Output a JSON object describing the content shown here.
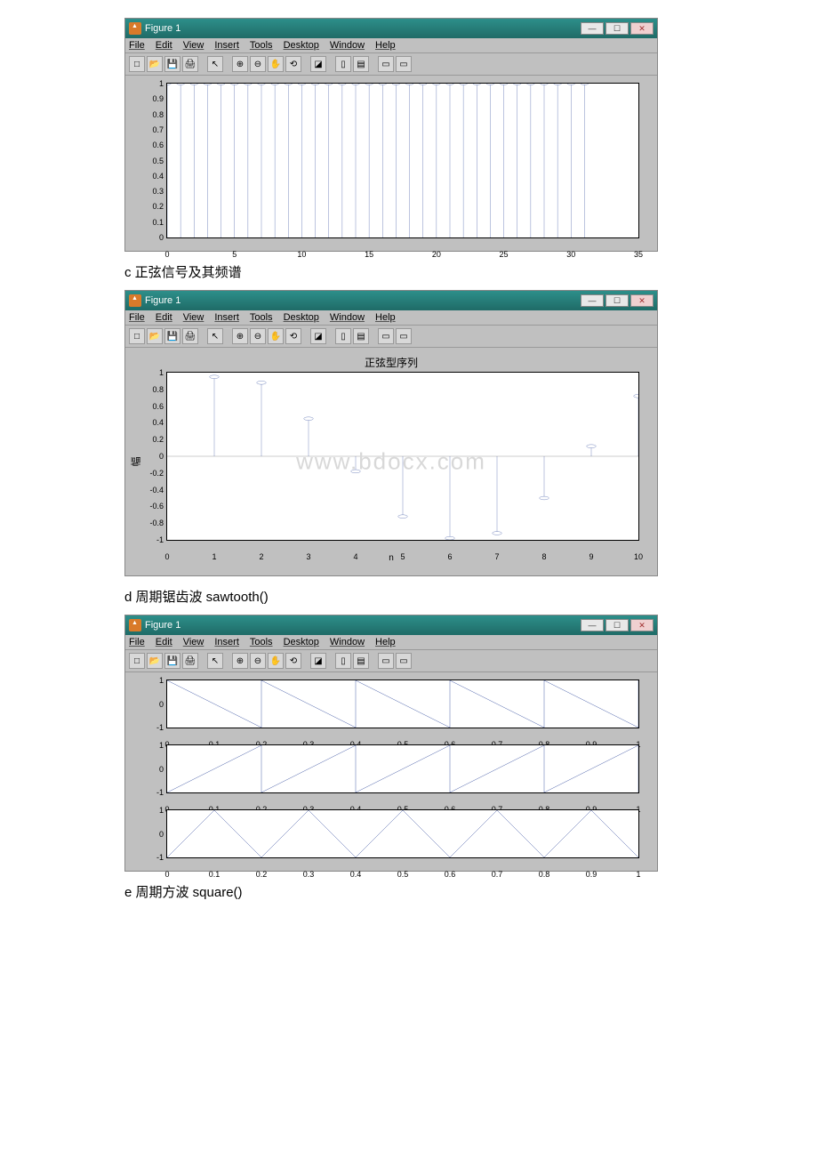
{
  "captions": {
    "c": "c 正弦信号及其频谱",
    "d": "d 周期锯齿波 sawtooth()",
    "e": "e 周期方波 square()"
  },
  "watermark": "www.bdocx.com",
  "window_common": {
    "title": "Figure 1",
    "menus": [
      "File",
      "Edit",
      "View",
      "Insert",
      "Tools",
      "Desktop",
      "Window",
      "Help"
    ],
    "win_buttons": {
      "min": "—",
      "max": "☐",
      "close": "✕"
    }
  },
  "figure1": {
    "type": "stem",
    "xlim": [
      0,
      35
    ],
    "ylim": [
      0,
      1
    ],
    "yticks": [
      0,
      0.1,
      0.2,
      0.3,
      0.4,
      0.5,
      0.6,
      0.7,
      0.8,
      0.9,
      1
    ],
    "ytick_labels": [
      "0",
      "0.1",
      "0.2",
      "0.3",
      "0.4",
      "0.5",
      "0.6",
      "0.7",
      "0.8",
      "0.9",
      "1"
    ],
    "xticks": [
      0,
      5,
      10,
      15,
      20,
      25,
      30,
      35
    ],
    "xtick_labels": [
      "0",
      "5",
      "10",
      "15",
      "20",
      "25",
      "30",
      "35"
    ],
    "stems_x": [
      0,
      1,
      2,
      3,
      4,
      5,
      6,
      7,
      8,
      9,
      10,
      11,
      12,
      13,
      14,
      15,
      16,
      17,
      18,
      19,
      20,
      21,
      22,
      23,
      24,
      25,
      26,
      27,
      28,
      29,
      30,
      31
    ],
    "stem_value": 1,
    "stem_color": "#1f3a93",
    "marker_color": "#1f3a93",
    "background": "#ffffff",
    "height": 175
  },
  "figure2": {
    "type": "stem",
    "title": "正弦型序列",
    "ylabel": "幅",
    "xlabel": "n",
    "xlim": [
      0,
      10
    ],
    "ylim": [
      -1,
      1
    ],
    "yticks": [
      -1,
      -0.8,
      -0.6,
      -0.4,
      -0.2,
      0,
      0.2,
      0.4,
      0.6,
      0.8,
      1
    ],
    "ytick_labels": [
      "-1",
      "-0.8",
      "-0.6",
      "-0.4",
      "-0.2",
      "0",
      "0.2",
      "0.4",
      "0.6",
      "0.8",
      "1"
    ],
    "xticks": [
      0,
      1,
      2,
      3,
      4,
      5,
      6,
      7,
      8,
      9,
      10
    ],
    "xtick_labels": [
      "0",
      "1",
      "2",
      "3",
      "4",
      "5",
      "6",
      "7",
      "8",
      "9",
      "10"
    ],
    "data": [
      {
        "x": 1,
        "y": 0.95
      },
      {
        "x": 2,
        "y": 0.88
      },
      {
        "x": 3,
        "y": 0.45
      },
      {
        "x": 4,
        "y": -0.18
      },
      {
        "x": 5,
        "y": -0.72
      },
      {
        "x": 6,
        "y": -0.98
      },
      {
        "x": 7,
        "y": -0.92
      },
      {
        "x": 8,
        "y": -0.5
      },
      {
        "x": 9,
        "y": 0.12
      },
      {
        "x": 10,
        "y": 0.72
      }
    ],
    "stem_color": "#1f3a93",
    "height": 190
  },
  "figure3": {
    "type": "subplots-line",
    "xlim": [
      0,
      1
    ],
    "ylim": [
      -1,
      1
    ],
    "yticks": [
      -1,
      0,
      1
    ],
    "ytick_labels": [
      "-1",
      "0",
      "1"
    ],
    "xticks": [
      0,
      0.1,
      0.2,
      0.3,
      0.4,
      0.5,
      0.6,
      0.7,
      0.8,
      0.9,
      1
    ],
    "xtick_labels": [
      "0",
      "0.1",
      "0.2",
      "0.3",
      "0.4",
      "0.5",
      "0.6",
      "0.7",
      "0.8",
      "0.9",
      "1"
    ],
    "line_color": "#1f3a93",
    "sub_height": 55,
    "period": 0.2,
    "subplots": [
      {
        "mode": "falling"
      },
      {
        "mode": "rising"
      },
      {
        "mode": "triangle"
      }
    ]
  }
}
